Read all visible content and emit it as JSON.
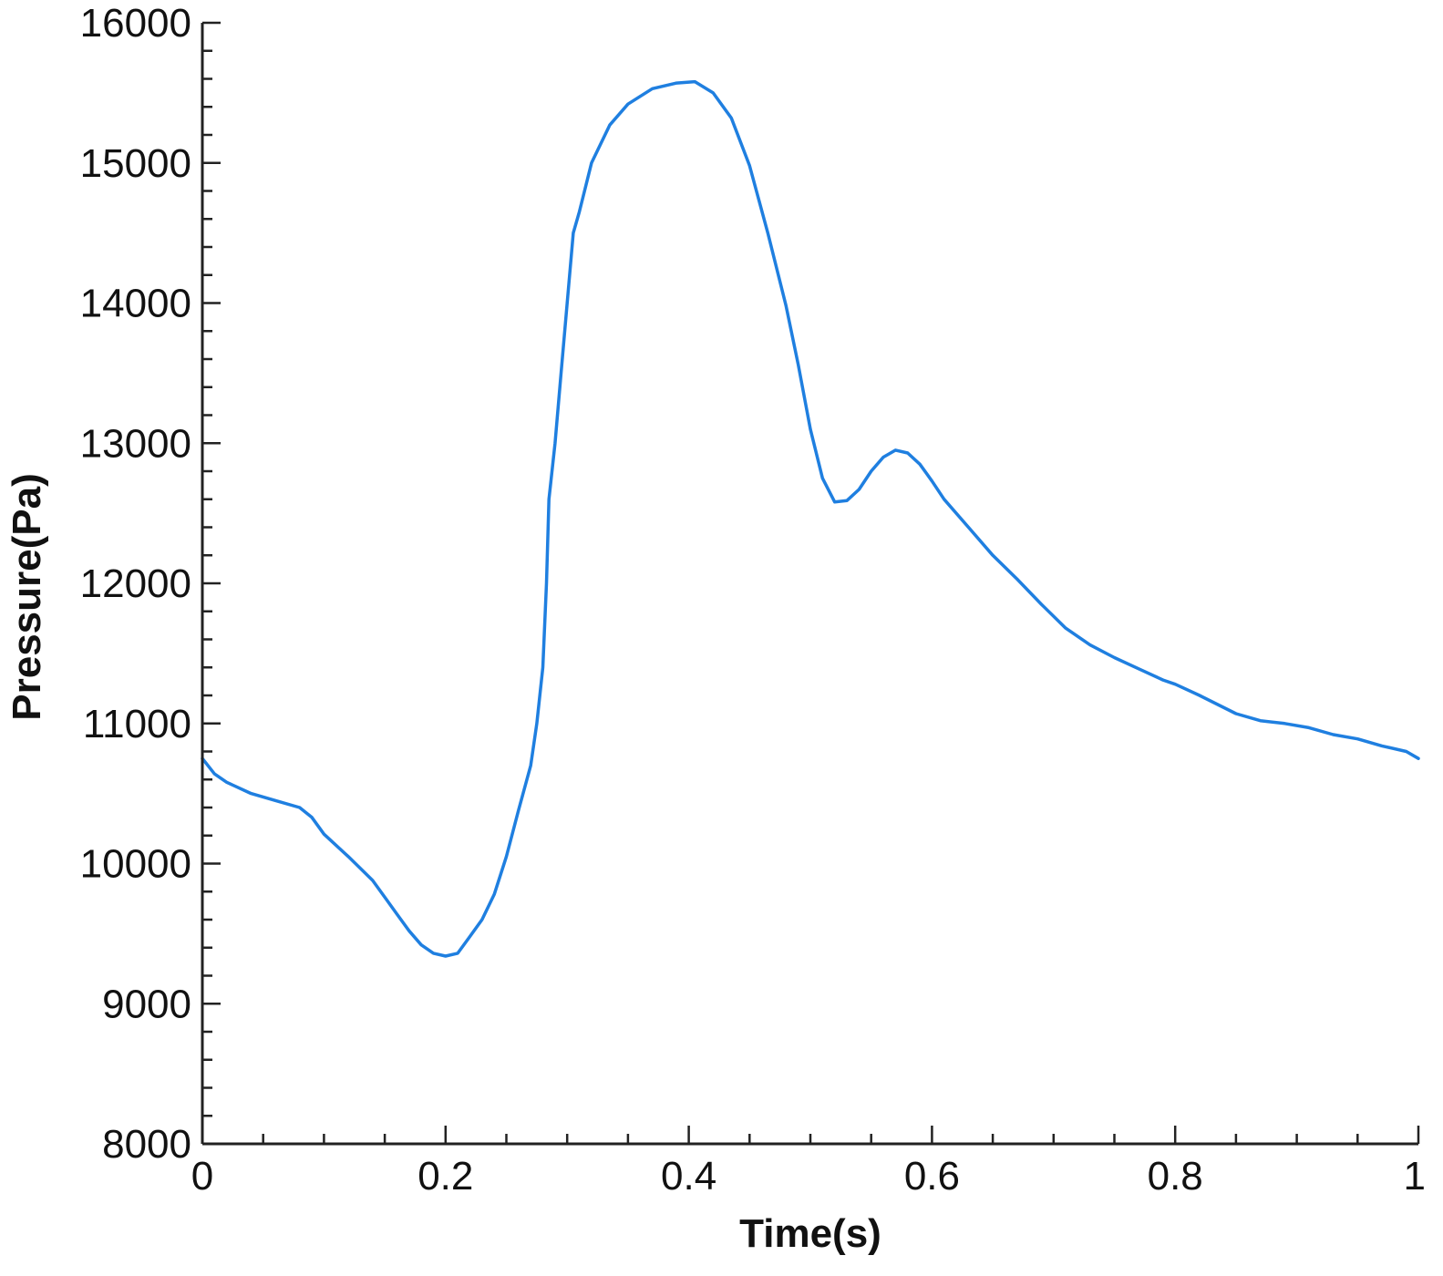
{
  "chart_data": {
    "type": "line",
    "xlabel": "Time(s)",
    "ylabel": "Pressure(Pa)",
    "xlim": [
      0,
      1
    ],
    "ylim": [
      8000,
      16000
    ],
    "x_major_ticks": [
      0,
      0.2,
      0.4,
      0.6,
      0.8,
      1
    ],
    "x_tick_labels": [
      "0",
      "0.2",
      "0.4",
      "0.6",
      "0.8",
      "1"
    ],
    "x_minor_step": 0.05,
    "y_major_ticks": [
      8000,
      9000,
      10000,
      11000,
      12000,
      13000,
      14000,
      15000,
      16000
    ],
    "y_tick_labels": [
      "8000",
      "9000",
      "10000",
      "11000",
      "12000",
      "13000",
      "14000",
      "15000",
      "16000"
    ],
    "y_minor_step": 200,
    "grid": false,
    "colors": {
      "series": "#1f7fe0",
      "axis": "#222222"
    },
    "series": [
      {
        "x": [
          0,
          0.01,
          0.02,
          0.04,
          0.06,
          0.08,
          0.09,
          0.1,
          0.12,
          0.14,
          0.15,
          0.16,
          0.17,
          0.18,
          0.19,
          0.2,
          0.21,
          0.22,
          0.23,
          0.24,
          0.25,
          0.26,
          0.27,
          0.275,
          0.28,
          0.283,
          0.285,
          0.29,
          0.295,
          0.3,
          0.305,
          0.31,
          0.32,
          0.335,
          0.35,
          0.37,
          0.39,
          0.405,
          0.42,
          0.435,
          0.45,
          0.465,
          0.48,
          0.49,
          0.5,
          0.51,
          0.52,
          0.53,
          0.54,
          0.55,
          0.56,
          0.57,
          0.58,
          0.59,
          0.6,
          0.61,
          0.63,
          0.65,
          0.67,
          0.69,
          0.71,
          0.73,
          0.75,
          0.77,
          0.79,
          0.8,
          0.82,
          0.85,
          0.87,
          0.89,
          0.91,
          0.93,
          0.95,
          0.97,
          0.99,
          1
        ],
        "y": [
          10750,
          10640,
          10580,
          10500,
          10450,
          10400,
          10330,
          10210,
          10050,
          9880,
          9760,
          9640,
          9520,
          9420,
          9360,
          9340,
          9360,
          9480,
          9600,
          9780,
          10050,
          10380,
          10700,
          11000,
          11400,
          12000,
          12600,
          13000,
          13500,
          14000,
          14500,
          14650,
          15000,
          15270,
          15420,
          15530,
          15570,
          15580,
          15500,
          15320,
          14980,
          14500,
          13980,
          13560,
          13100,
          12750,
          12580,
          12590,
          12670,
          12800,
          12900,
          12950,
          12930,
          12850,
          12730,
          12600,
          12400,
          12200,
          12030,
          11850,
          11680,
          11560,
          11470,
          11390,
          11310,
          11280,
          11200,
          11070,
          11020,
          11000,
          10970,
          10920,
          10890,
          10840,
          10800,
          10750
        ]
      }
    ]
  }
}
